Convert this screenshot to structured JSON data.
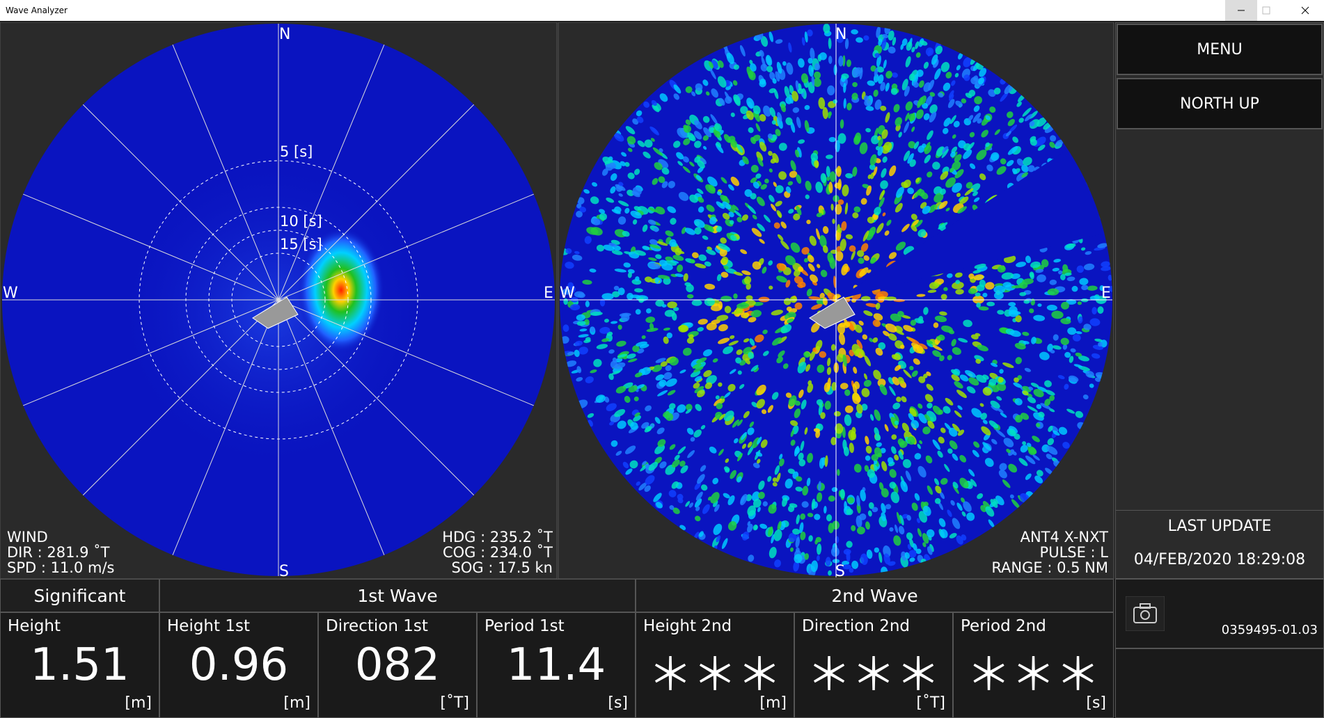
{
  "window": {
    "title": "Wave Analyzer"
  },
  "left_panel": {
    "compass": {
      "n": "N",
      "e": "E",
      "s": "S",
      "w": "W"
    },
    "rings": [
      "5 [s]",
      "10 [s]",
      "15 [s]"
    ],
    "wind": [
      "WIND",
      "DIR : 281.9 ˚T",
      "SPD : 11.0 m/s"
    ],
    "nav": [
      "HDG : 235.2 ˚T",
      "COG : 234.0 ˚T",
      "SOG :   17.5 kn"
    ]
  },
  "right_panel": {
    "compass": {
      "n": "N",
      "e": "E",
      "s": "S",
      "w": "W"
    },
    "info": [
      "ANT4 X-NXT",
      "PULSE : L",
      "RANGE : 0.5 NM"
    ]
  },
  "side": {
    "buttons": [
      "MENU",
      "NORTH UP"
    ],
    "last_update_label": "LAST UPDATE",
    "last_update": "04/FEB/2020 18:29:08",
    "version": "0359495-01.03"
  },
  "table": {
    "groups": [
      "Significant",
      "1st Wave",
      "2nd Wave"
    ],
    "cells": [
      {
        "label": "Height",
        "value": "1.51",
        "unit": "[m]"
      },
      {
        "label": "Height 1st",
        "value": "0.96",
        "unit": "[m]"
      },
      {
        "label": "Direction 1st",
        "value": "082",
        "unit": "[˚T]"
      },
      {
        "label": "Period 1st",
        "value": "11.4",
        "unit": "[s]"
      },
      {
        "label": "Height 2nd",
        "value": "＊＊＊",
        "unit": "[m]"
      },
      {
        "label": "Direction 2nd",
        "value": "＊＊＊",
        "unit": "[˚T]"
      },
      {
        "label": "Period 2nd",
        "value": "＊＊＊",
        "unit": "[s]"
      }
    ]
  }
}
